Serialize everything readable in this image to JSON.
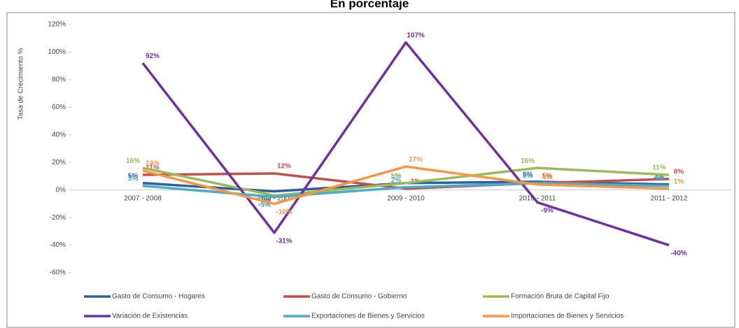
{
  "chart_data": {
    "type": "line",
    "title": "En porcentaje",
    "y_label": "Tasa de Crecimiento %",
    "categories": [
      "2007 - 2008",
      "2008 - 2009",
      "2009 - 2010",
      "2010 - 2011",
      "2011 - 2012"
    ],
    "series": [
      {
        "name": "Gasto de Consumo - Hogares",
        "color": "#2e5f9e",
        "values": [
          5,
          -1,
          5,
          6,
          4
        ],
        "value_labels": [
          "5%",
          "-1%",
          "5%",
          "6%",
          "4%"
        ]
      },
      {
        "name": "Gasto de Consumo - Gobierno",
        "color": "#c0504d",
        "values": [
          11,
          12,
          1,
          5,
          8
        ],
        "value_labels": [
          "11%",
          "12%",
          "1%",
          "5%",
          "8%"
        ]
      },
      {
        "name": "Formación Bruta de Capital Fijo",
        "color": "#9bbb59",
        "values": [
          16,
          -4,
          5,
          16,
          11
        ],
        "value_labels": [
          "16%",
          "-4%",
          "5%",
          "16%",
          "11%"
        ]
      },
      {
        "name": "Variación de Existencias",
        "color": "#7030a0",
        "values": [
          92,
          -31,
          107,
          -9,
          -40
        ],
        "value_labels": [
          "92%",
          "-31%",
          "107%",
          "-9%",
          "-40%"
        ]
      },
      {
        "name": "Exportaciones de Bienes y Servicios",
        "color": "#4bacc6",
        "values": [
          3,
          -5,
          2,
          5,
          3
        ],
        "value_labels": [
          "3%",
          "-5%",
          "2%",
          "5%",
          "3%"
        ]
      },
      {
        "name": "Importaciones de Bienes y Servicios",
        "color": "#f79646",
        "values": [
          14,
          -10,
          17,
          4,
          1
        ],
        "value_labels": [
          "14%",
          "-10%",
          "17%",
          "4%",
          "1%"
        ]
      }
    ],
    "ylim": [
      -60,
      120
    ],
    "yticks": [
      {
        "value": -60,
        "label": "-60%"
      },
      {
        "value": -40,
        "label": "-40%"
      },
      {
        "value": -20,
        "label": "-20%"
      },
      {
        "value": 0,
        "label": "0%"
      },
      {
        "value": 20,
        "label": "20%"
      },
      {
        "value": 40,
        "label": "40%"
      },
      {
        "value": 60,
        "label": "60%"
      },
      {
        "value": 80,
        "label": "80%"
      },
      {
        "value": 100,
        "label": "100%"
      },
      {
        "value": 120,
        "label": "120%"
      }
    ],
    "grid": false,
    "legend": "bottom"
  }
}
